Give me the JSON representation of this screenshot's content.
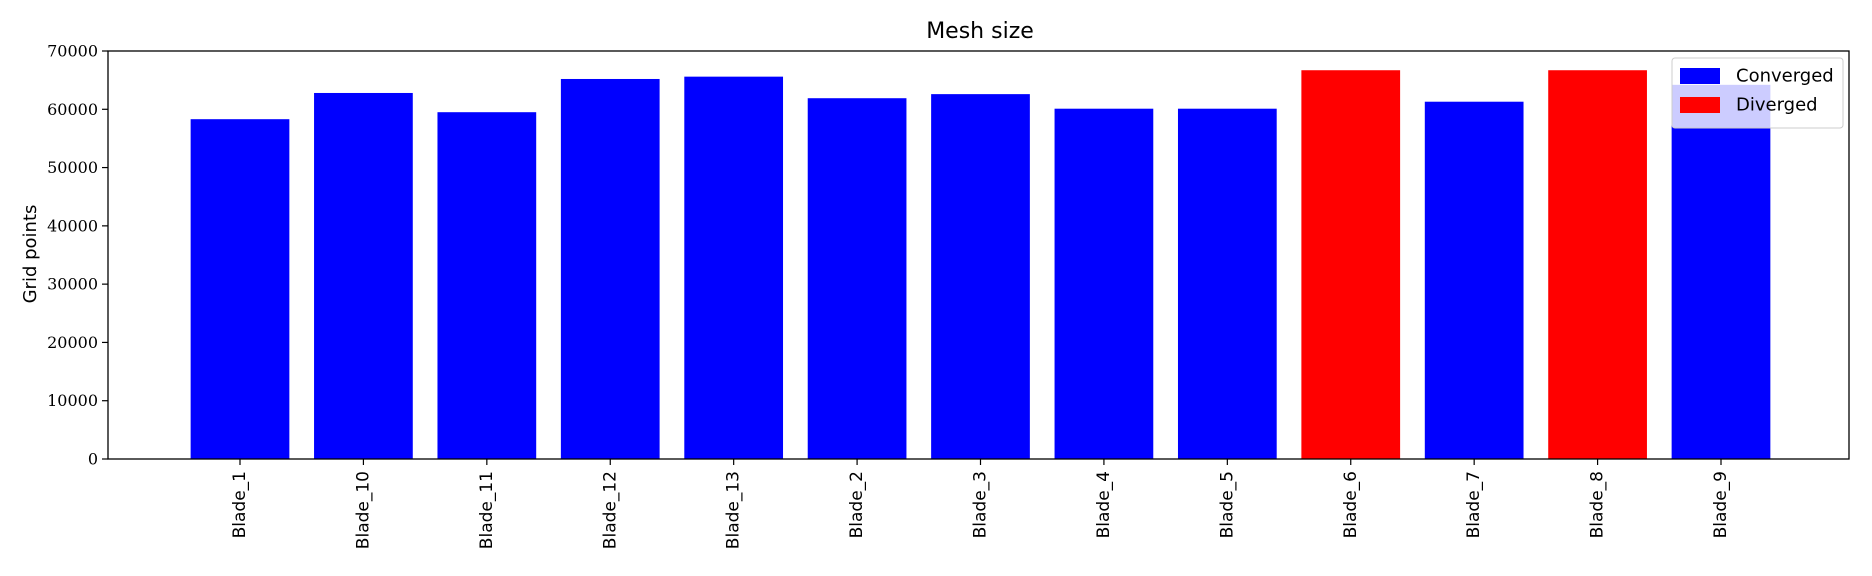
{
  "chart_data": {
    "type": "bar",
    "title": "Mesh size",
    "xlabel": "",
    "ylabel": "Grid points",
    "ylim": [
      0,
      70000
    ],
    "yticks": [
      0,
      10000,
      20000,
      30000,
      40000,
      50000,
      60000,
      70000
    ],
    "categories": [
      "Blade_1",
      "Blade_10",
      "Blade_11",
      "Blade_12",
      "Blade_13",
      "Blade_2",
      "Blade_3",
      "Blade_4",
      "Blade_5",
      "Blade_6",
      "Blade_7",
      "Blade_8",
      "Blade_9"
    ],
    "values": [
      58300,
      62800,
      59500,
      65200,
      65600,
      61900,
      62600,
      60100,
      60100,
      66700,
      61300,
      66700,
      64200
    ],
    "status": [
      "Converged",
      "Converged",
      "Converged",
      "Converged",
      "Converged",
      "Converged",
      "Converged",
      "Converged",
      "Converged",
      "Diverged",
      "Converged",
      "Diverged",
      "Converged"
    ],
    "legend": [
      {
        "name": "Converged",
        "color": "#0000ff"
      },
      {
        "name": "Diverged",
        "color": "#ff0000"
      }
    ],
    "legend_position": "top-right",
    "grid": false
  }
}
